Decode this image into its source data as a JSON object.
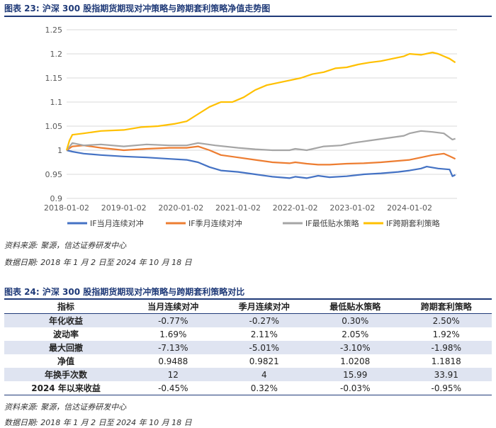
{
  "figure1": {
    "title": "图表 23:  沪深 300 股指期货期现对冲策略与跨期套利策略净值走势图",
    "source": "资料来源:  聚源，信达证券研发中心",
    "date_note": "数据日期:  2018 年 1 月 2 日至 2024 年 10 月 18 日"
  },
  "chart_data": {
    "type": "line",
    "title": "",
    "xlabel": "",
    "ylabel": "",
    "ylim": [
      0.9,
      1.25
    ],
    "yticks": [
      0.9,
      0.95,
      1,
      1.05,
      1.1,
      1.15,
      1.2,
      1.25
    ],
    "xlim": [
      2018.0,
      2024.83
    ],
    "xticks": [
      2018.0,
      2019.0,
      2020.0,
      2021.0,
      2022.0,
      2023.0,
      2024.0
    ],
    "xtick_labels": [
      "2018-01-02",
      "2019-01-02",
      "2020-01-02",
      "2021-01-02",
      "2022-01-02",
      "2023-01-02",
      "2024-01-02"
    ],
    "legend_position": "bottom",
    "series": [
      {
        "name": "IF当月连续对冲",
        "color": "#4472c4",
        "x": [
          2018.0,
          2018.1,
          2018.3,
          2018.6,
          2019.0,
          2019.4,
          2019.8,
          2020.1,
          2020.3,
          2020.5,
          2020.7,
          2021.0,
          2021.3,
          2021.6,
          2021.9,
          2022.0,
          2022.2,
          2022.4,
          2022.6,
          2022.9,
          2023.2,
          2023.5,
          2023.8,
          2024.0,
          2024.2,
          2024.3,
          2024.5,
          2024.7,
          2024.75,
          2024.8
        ],
        "values": [
          1.0,
          0.997,
          0.993,
          0.99,
          0.987,
          0.985,
          0.982,
          0.98,
          0.975,
          0.965,
          0.958,
          0.955,
          0.95,
          0.945,
          0.942,
          0.945,
          0.942,
          0.947,
          0.944,
          0.946,
          0.95,
          0.952,
          0.955,
          0.958,
          0.962,
          0.966,
          0.962,
          0.96,
          0.946,
          0.949
        ]
      },
      {
        "name": "IF季月连续对冲",
        "color": "#ed7d31",
        "x": [
          2018.0,
          2018.1,
          2018.3,
          2018.6,
          2019.0,
          2019.4,
          2019.8,
          2020.1,
          2020.3,
          2020.5,
          2020.7,
          2021.0,
          2021.3,
          2021.6,
          2021.9,
          2022.0,
          2022.2,
          2022.4,
          2022.6,
          2022.9,
          2023.2,
          2023.5,
          2023.8,
          2024.0,
          2024.2,
          2024.4,
          2024.6,
          2024.75,
          2024.8
        ],
        "values": [
          1.0,
          1.008,
          1.01,
          1.005,
          1.0,
          1.003,
          1.005,
          1.005,
          1.008,
          1.0,
          0.99,
          0.985,
          0.98,
          0.975,
          0.973,
          0.975,
          0.972,
          0.97,
          0.97,
          0.972,
          0.973,
          0.975,
          0.978,
          0.98,
          0.985,
          0.99,
          0.993,
          0.985,
          0.982
        ]
      },
      {
        "name": "IF最低贴水策略",
        "color": "#a5a5a5",
        "x": [
          2018.0,
          2018.1,
          2018.3,
          2018.6,
          2019.0,
          2019.4,
          2019.8,
          2020.1,
          2020.3,
          2020.6,
          2021.0,
          2021.3,
          2021.6,
          2021.9,
          2022.0,
          2022.2,
          2022.5,
          2022.8,
          2023.0,
          2023.3,
          2023.6,
          2023.9,
          2024.0,
          2024.2,
          2024.4,
          2024.6,
          2024.75,
          2024.8
        ],
        "values": [
          1.0,
          1.015,
          1.01,
          1.012,
          1.008,
          1.012,
          1.01,
          1.01,
          1.015,
          1.01,
          1.005,
          1.002,
          1.0,
          1.0,
          1.003,
          1.0,
          1.008,
          1.01,
          1.015,
          1.02,
          1.025,
          1.03,
          1.035,
          1.04,
          1.038,
          1.035,
          1.022,
          1.024
        ]
      },
      {
        "name": "IF跨期套利策略",
        "color": "#ffc000",
        "x": [
          2018.0,
          2018.05,
          2018.1,
          2018.3,
          2018.6,
          2019.0,
          2019.3,
          2019.6,
          2019.9,
          2020.1,
          2020.3,
          2020.5,
          2020.7,
          2020.9,
          2021.1,
          2021.3,
          2021.5,
          2021.7,
          2021.9,
          2022.1,
          2022.3,
          2022.5,
          2022.7,
          2022.9,
          2023.1,
          2023.3,
          2023.5,
          2023.7,
          2023.9,
          2024.0,
          2024.2,
          2024.4,
          2024.5,
          2024.6,
          2024.7,
          2024.8
        ],
        "values": [
          1.0,
          1.02,
          1.032,
          1.035,
          1.04,
          1.042,
          1.048,
          1.05,
          1.055,
          1.06,
          1.075,
          1.09,
          1.1,
          1.1,
          1.11,
          1.125,
          1.135,
          1.14,
          1.145,
          1.15,
          1.158,
          1.162,
          1.17,
          1.172,
          1.178,
          1.182,
          1.185,
          1.19,
          1.195,
          1.2,
          1.198,
          1.203,
          1.2,
          1.195,
          1.19,
          1.182
        ]
      }
    ]
  },
  "figure2": {
    "title": "图表 24:  沪深 300 股指期货期现对冲策略与跨期套利策略对比",
    "source": "资料来源:  聚源，信达证券研发中心",
    "date_note": "数据日期:  2018 年 1 月 2 日至 2024 年 10 月 18 日"
  },
  "table": {
    "headers": [
      "指标",
      "当月连续对冲",
      "季月连续对冲",
      "最低贴水策略",
      "跨期套利策略"
    ],
    "rows": [
      [
        "年化收益",
        "-0.77%",
        "-0.27%",
        "0.30%",
        "2.50%"
      ],
      [
        "波动率",
        "1.69%",
        "2.11%",
        "2.05%",
        "1.92%"
      ],
      [
        "最大回撤",
        "-7.13%",
        "-5.01%",
        "-3.10%",
        "-1.98%"
      ],
      [
        "净值",
        "0.9488",
        "0.9821",
        "1.0208",
        "1.1818"
      ],
      [
        "年换手次数",
        "12",
        "4",
        "15.99",
        "33.91"
      ],
      [
        "2024 年以来收益",
        "-0.45%",
        "0.32%",
        "-0.03%",
        "-0.95%"
      ]
    ]
  }
}
